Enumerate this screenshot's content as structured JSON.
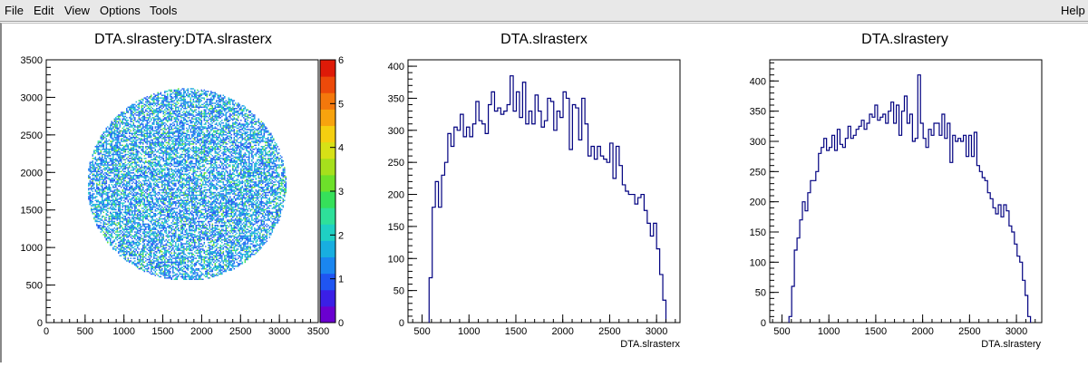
{
  "menu": {
    "file": "File",
    "edit": "Edit",
    "view": "View",
    "options": "Options",
    "tools": "Tools",
    "help": "Help"
  },
  "colors": {
    "histogram_line": "#000080",
    "palette": [
      "#6a00d0",
      "#3a1fe6",
      "#1f55f2",
      "#1a86f0",
      "#18aee0",
      "#1fd0c4",
      "#2ee09a",
      "#36e05a",
      "#6de12a",
      "#a6e01c",
      "#d7e116",
      "#f5cf10",
      "#f7a30e",
      "#f4780c",
      "#ec4a0a",
      "#de1a08"
    ]
  },
  "chart_data": [
    {
      "type": "heatmap",
      "title": "DTA.slrastery:DTA.slrasterx",
      "xlabel": "",
      "ylabel": "",
      "xlim": [
        0,
        3500
      ],
      "ylim": [
        0,
        3500
      ],
      "x_ticks": [
        "0",
        "500",
        "1000",
        "1500",
        "2000",
        "2500",
        "3000",
        "3500"
      ],
      "y_ticks": [
        "0",
        "500",
        "1000",
        "1500",
        "2000",
        "2500",
        "3000",
        "3500"
      ],
      "zlim": [
        0,
        6
      ],
      "z_ticks": [
        "0",
        "1",
        "2",
        "3",
        "4",
        "5",
        "6"
      ],
      "distribution": {
        "shape": "disk",
        "center": [
          1800,
          1830
        ],
        "radius": 1280,
        "typical_bin_count": [
          1,
          2
        ]
      }
    },
    {
      "type": "bar",
      "subtype": "step-histogram",
      "title": "DTA.slrasterx",
      "xlabel": "DTA.slrasterx",
      "ylabel": "",
      "xlim": [
        350,
        3250
      ],
      "ylim": [
        0,
        410
      ],
      "x_ticks": [
        "500",
        "1000",
        "1500",
        "2000",
        "2500",
        "3000"
      ],
      "y_ticks": [
        "0",
        "50",
        "100",
        "150",
        "200",
        "250",
        "300",
        "350",
        "400"
      ],
      "bin_edges_range": [
        575,
        3100
      ],
      "values": [
        70,
        180,
        220,
        180,
        230,
        250,
        295,
        275,
        305,
        300,
        325,
        290,
        305,
        290,
        310,
        345,
        315,
        310,
        295,
        340,
        360,
        330,
        335,
        325,
        330,
        340,
        385,
        330,
        360,
        320,
        375,
        310,
        330,
        310,
        355,
        330,
        305,
        315,
        350,
        345,
        300,
        330,
        320,
        360,
        350,
        270,
        340,
        335,
        285,
        350,
        310,
        260,
        275,
        255,
        275,
        260,
        255,
        250,
        280,
        225,
        275,
        245,
        215,
        205,
        200,
        200,
        185,
        195,
        200,
        175,
        155,
        135,
        155,
        115,
        75,
        35
      ],
      "grid": false
    },
    {
      "type": "bar",
      "subtype": "step-histogram",
      "title": "DTA.slrastery",
      "xlabel": "DTA.slrastery",
      "ylabel": "",
      "xlim": [
        370,
        3270
      ],
      "ylim": [
        0,
        435
      ],
      "x_ticks": [
        "500",
        "1000",
        "1500",
        "2000",
        "2500",
        "3000"
      ],
      "y_ticks": [
        "0",
        "50",
        "100",
        "150",
        "200",
        "250",
        "300",
        "350",
        "400"
      ],
      "bin_edges_range": [
        575,
        3150
      ],
      "values": [
        10,
        60,
        120,
        140,
        170,
        200,
        185,
        215,
        235,
        235,
        250,
        280,
        290,
        305,
        285,
        290,
        310,
        285,
        320,
        295,
        290,
        305,
        325,
        305,
        310,
        320,
        325,
        335,
        320,
        330,
        345,
        340,
        360,
        335,
        340,
        345,
        330,
        350,
        365,
        330,
        360,
        310,
        350,
        375,
        330,
        345,
        300,
        305,
        410,
        330,
        305,
        290,
        320,
        310,
        330,
        330,
        310,
        345,
        305,
        330,
        265,
        310,
        300,
        305,
        300,
        310,
        275,
        310,
        275,
        315,
        260,
        250,
        240,
        235,
        215,
        205,
        190,
        180,
        195,
        175,
        195,
        185,
        160,
        150,
        130,
        110,
        100,
        70,
        45,
        10
      ],
      "grid": false
    }
  ]
}
